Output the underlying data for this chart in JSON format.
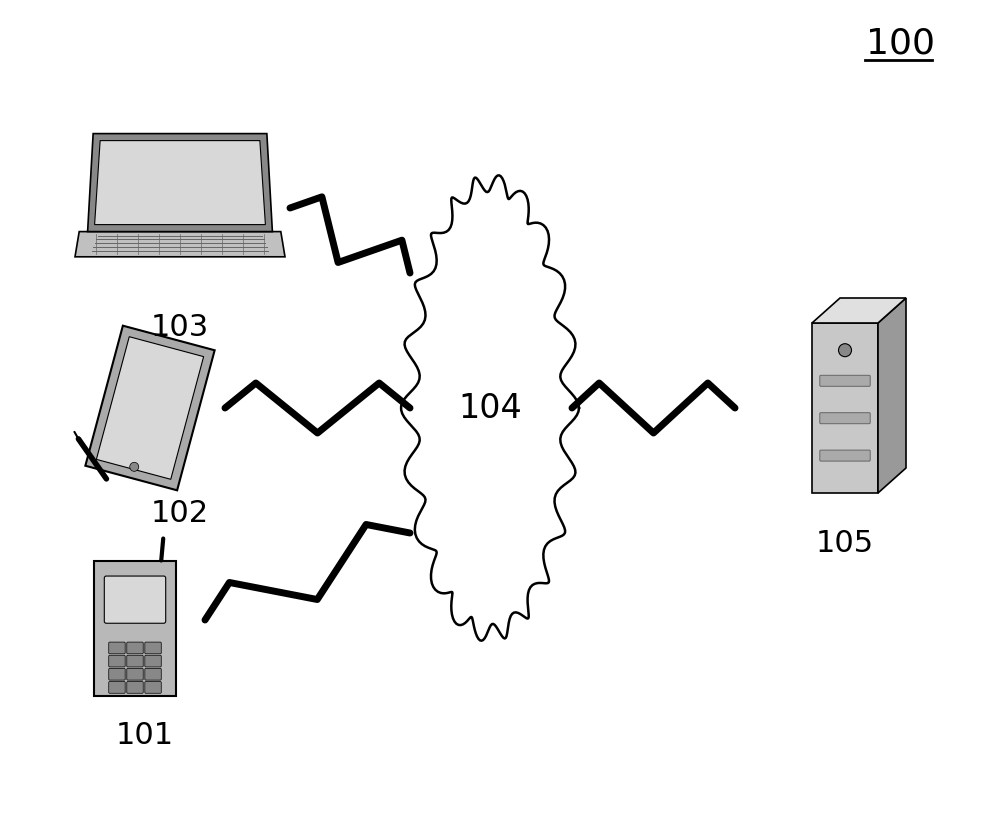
{
  "title_label": "100",
  "cloud_label": "104",
  "laptop_label": "103",
  "tablet_label": "102",
  "phone_label": "101",
  "server_label": "105",
  "bg_color": "#ffffff",
  "line_color": "#000000",
  "text_color": "#000000",
  "cloud_color": "#ffffff",
  "cloud_edge_color": "#000000",
  "device_color": "#999999",
  "figsize": [
    10.0,
    8.18
  ]
}
